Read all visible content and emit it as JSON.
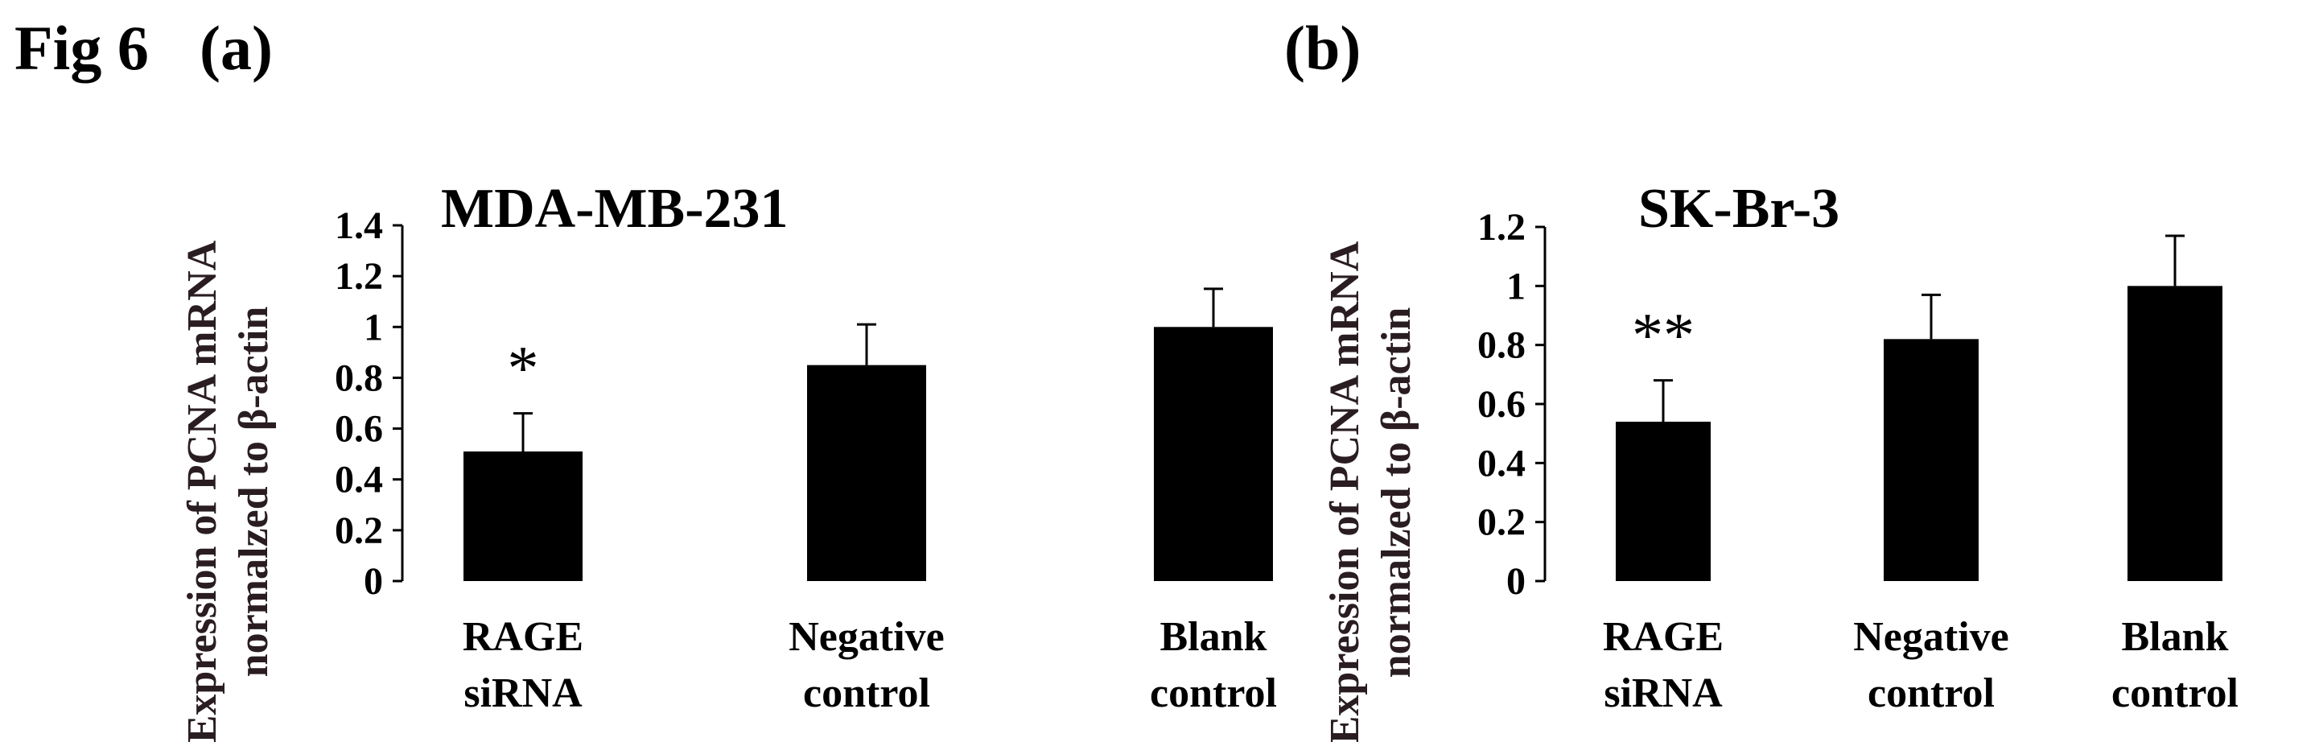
{
  "figure": {
    "label": "Fig 6",
    "ylabel_line1": "Expression of PCNA mRNA",
    "ylabel_line2": "normalzed to β-actin"
  },
  "chart_data": [
    {
      "type": "bar",
      "panel_label": "(a)",
      "title": "MDA-MB-231",
      "ylabel": "Expression of PCNA mRNA normalzed to β-actin",
      "xlabel": "",
      "categories": [
        [
          "RAGE",
          "siRNA"
        ],
        [
          "Negative",
          "control"
        ],
        [
          "Blank",
          "control"
        ]
      ],
      "values": [
        0.51,
        0.85,
        1.0
      ],
      "errors": [
        0.15,
        0.16,
        0.15
      ],
      "significance": [
        "*",
        "",
        ""
      ],
      "ylim": [
        0,
        1.4
      ],
      "yticks": [
        0,
        0.2,
        0.4,
        0.6,
        0.8,
        1,
        1.2,
        1.4
      ],
      "ytick_labels": [
        "0",
        "0.2",
        "0.4",
        "0.6",
        "0.8",
        "1",
        "1.2",
        "1.4"
      ],
      "bar_color": "#000000",
      "grid": false
    },
    {
      "type": "bar",
      "panel_label": "(b)",
      "title": "SK-Br-3",
      "ylabel": "Expression of PCNA mRNA normalzed to β-actin",
      "xlabel": "",
      "categories": [
        [
          "RAGE",
          "siRNA"
        ],
        [
          "Negative",
          "control"
        ],
        [
          "Blank",
          "control"
        ]
      ],
      "values": [
        0.54,
        0.82,
        1.0
      ],
      "errors": [
        0.14,
        0.15,
        0.17
      ],
      "significance": [
        "**",
        "",
        ""
      ],
      "ylim": [
        0,
        1.2
      ],
      "yticks": [
        0,
        0.2,
        0.4,
        0.6,
        0.8,
        1,
        1.2
      ],
      "ytick_labels": [
        "0",
        "0.2",
        "0.4",
        "0.6",
        "0.8",
        "1",
        "1.2"
      ],
      "bar_color": "#000000",
      "grid": false
    }
  ]
}
